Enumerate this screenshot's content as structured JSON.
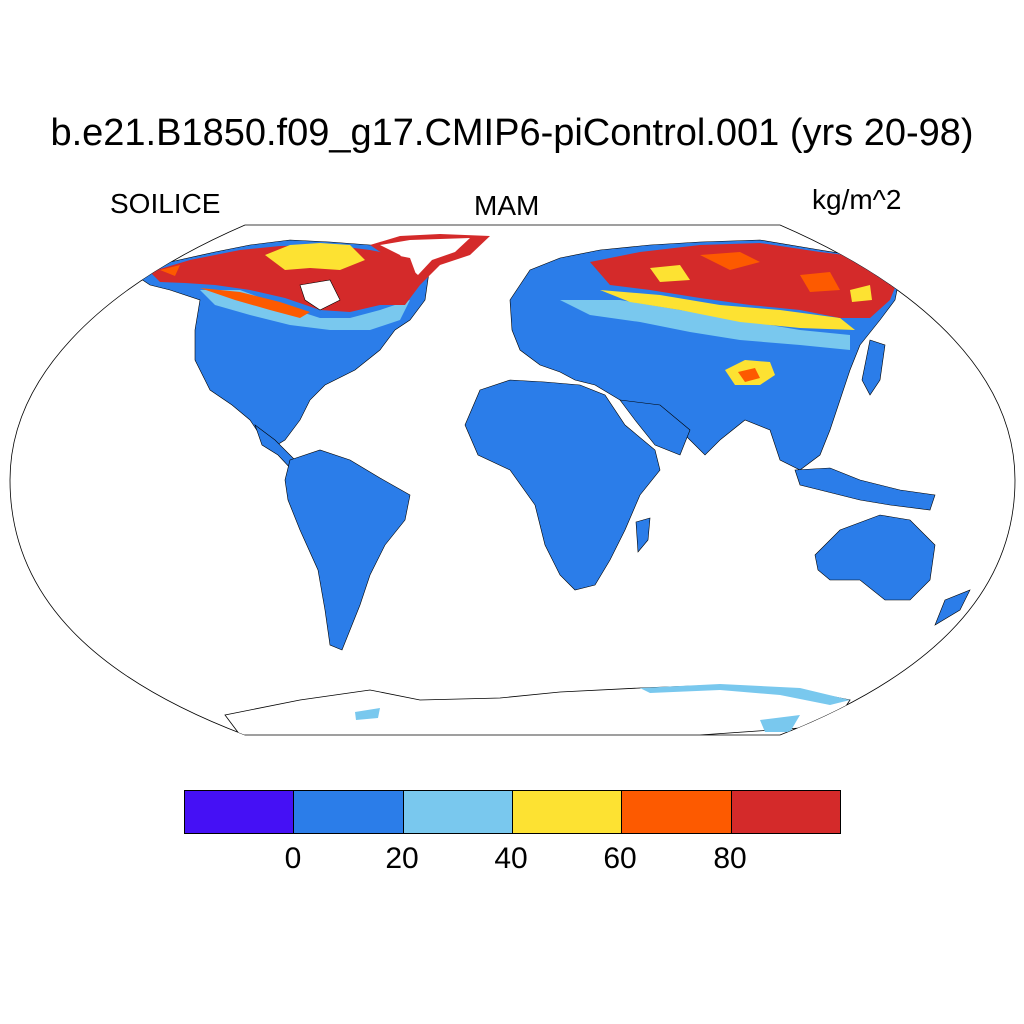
{
  "title": "b.e21.B1850.f09_g17.CMIP6-piControl.001 (yrs 20-98)",
  "variable": "SOILICE",
  "season": "MAM",
  "units": "kg/m^2",
  "colors": {
    "ocean": "#ffffff",
    "outline": "#000000",
    "bins": [
      "#4510f5",
      "#2b7de9",
      "#79c8ee",
      "#fde232",
      "#fd5a00",
      "#d42a2a"
    ]
  },
  "colorbar": {
    "labels": [
      "0",
      "20",
      "40",
      "60",
      "80"
    ]
  },
  "chart_data": {
    "type": "heatmap",
    "title": "b.e21.B1850.f09_g17.CMIP6-piControl.001 (yrs 20-98)",
    "field": "SOILICE",
    "season": "MAM",
    "units": "kg/m^2",
    "levels": [
      0,
      20,
      40,
      60,
      80
    ],
    "projection": "Robinson",
    "regions": [
      {
        "name": "Most global land",
        "value_range": [
          0,
          20
        ]
      },
      {
        "name": "Canadian Arctic / Hudson Bay",
        "value_range": [
          80,
          100
        ]
      },
      {
        "name": "Northern Siberia",
        "value_range": [
          80,
          100
        ]
      },
      {
        "name": "Tibetan Plateau patch",
        "value_range": [
          60,
          100
        ]
      },
      {
        "name": "Antarctic margin",
        "value_range": [
          20,
          40
        ]
      }
    ]
  }
}
